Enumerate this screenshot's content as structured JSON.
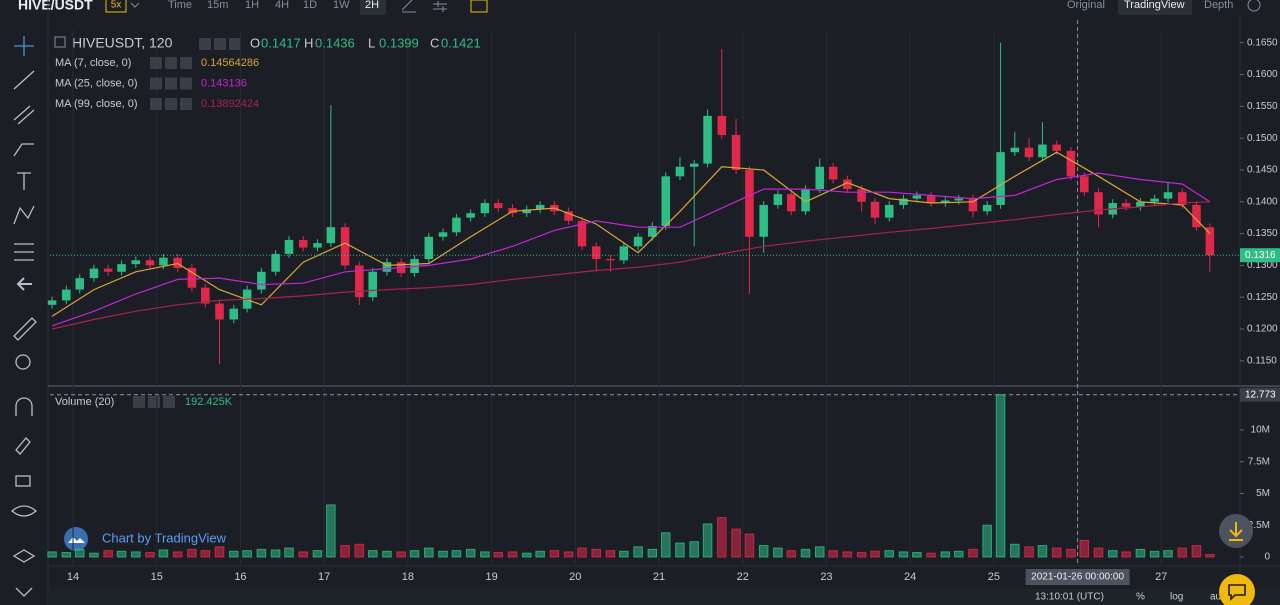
{
  "toolbar": {
    "symbol": "HIVE/USDT",
    "leverage": "5x",
    "intervals": [
      "Time",
      "15m",
      "1H",
      "4H",
      "1D",
      "1W",
      "2H"
    ],
    "views": [
      "Original",
      "TradingView",
      "Depth"
    ]
  },
  "watermark": "Chart by TradingView",
  "footer": {
    "time": "13:10:01 (UTC)",
    "percent": "%",
    "log": "log",
    "auto": "auto"
  },
  "chart_data": [
    {
      "type": "candlestick",
      "title": "HIVEUSDT, 120",
      "ohlc_legend": [
        {
          "key": "O",
          "value": 0.1417
        },
        {
          "key": "H",
          "value": 0.1436
        },
        {
          "key": "L",
          "value": 0.1399
        },
        {
          "key": "C",
          "value": 0.1421
        }
      ],
      "up_color": "#2ebd85",
      "down_color": "#e0294a",
      "x": [
        13.75,
        13.92,
        14.08,
        14.25,
        14.42,
        14.58,
        14.75,
        14.92,
        15.08,
        15.25,
        15.42,
        15.58,
        15.75,
        15.92,
        16.08,
        16.25,
        16.42,
        16.58,
        16.75,
        16.92,
        17.08,
        17.25,
        17.42,
        17.58,
        17.75,
        17.92,
        18.08,
        18.25,
        18.42,
        18.58,
        18.75,
        18.92,
        19.08,
        19.25,
        19.42,
        19.58,
        19.75,
        19.92,
        20.08,
        20.25,
        20.42,
        20.58,
        20.75,
        20.92,
        21.08,
        21.25,
        21.42,
        21.58,
        21.75,
        21.92,
        22.08,
        22.25,
        22.42,
        22.58,
        22.75,
        22.92,
        23.08,
        23.25,
        23.42,
        23.58,
        23.75,
        23.92,
        24.08,
        24.25,
        24.42,
        24.58,
        24.75,
        24.92,
        25.08,
        25.25,
        25.42,
        25.58,
        25.75,
        25.92,
        26.08,
        26.25,
        26.42,
        26.58,
        26.75,
        26.92,
        27.08,
        27.25,
        27.42,
        27.58
      ],
      "open": [
        0.1238,
        0.1245,
        0.1262,
        0.128,
        0.1295,
        0.129,
        0.1302,
        0.1308,
        0.13,
        0.1312,
        0.1296,
        0.1265,
        0.124,
        0.1215,
        0.1232,
        0.1262,
        0.129,
        0.1318,
        0.134,
        0.1328,
        0.1335,
        0.136,
        0.13,
        0.125,
        0.129,
        0.1305,
        0.1288,
        0.131,
        0.1345,
        0.1352,
        0.1375,
        0.1382,
        0.1398,
        0.139,
        0.1382,
        0.1388,
        0.1395,
        0.1385,
        0.137,
        0.133,
        0.131,
        0.1308,
        0.133,
        0.1345,
        0.1362,
        0.144,
        0.1455,
        0.146,
        0.1535,
        0.1505,
        0.145,
        0.1345,
        0.1395,
        0.1412,
        0.1385,
        0.142,
        0.1455,
        0.1435,
        0.142,
        0.14,
        0.1375,
        0.1395,
        0.1405,
        0.141,
        0.1398,
        0.1402,
        0.1405,
        0.1385,
        0.1395,
        0.1478,
        0.1485,
        0.147,
        0.149,
        0.148,
        0.144,
        0.1415,
        0.138,
        0.1398,
        0.1392,
        0.14,
        0.1405,
        0.1415,
        0.1395,
        0.136
      ],
      "high": [
        0.1251,
        0.1268,
        0.1286,
        0.1301,
        0.1301,
        0.1308,
        0.1314,
        0.1314,
        0.1318,
        0.1318,
        0.1302,
        0.1271,
        0.1246,
        0.1238,
        0.1268,
        0.1296,
        0.1324,
        0.1346,
        0.1346,
        0.1341,
        0.1552,
        0.1366,
        0.1306,
        0.1296,
        0.1311,
        0.1311,
        0.1316,
        0.1351,
        0.1358,
        0.1381,
        0.1388,
        0.1404,
        0.1404,
        0.1396,
        0.1394,
        0.1401,
        0.1401,
        0.1391,
        0.1376,
        0.1336,
        0.1316,
        0.1336,
        0.1351,
        0.1368,
        0.1446,
        0.147,
        0.1466,
        0.1545,
        0.164,
        0.153,
        0.1456,
        0.1401,
        0.1418,
        0.1418,
        0.1426,
        0.1468,
        0.1461,
        0.1441,
        0.1426,
        0.1406,
        0.1401,
        0.1411,
        0.1416,
        0.1416,
        0.1408,
        0.1411,
        0.1411,
        0.1401,
        0.165,
        0.151,
        0.15,
        0.1525,
        0.1496,
        0.1486,
        0.1446,
        0.1421,
        0.1404,
        0.1404,
        0.1406,
        0.1411,
        0.143,
        0.1421,
        0.1401,
        0.1366
      ],
      "low": [
        0.1232,
        0.1239,
        0.1256,
        0.1274,
        0.1284,
        0.1284,
        0.1296,
        0.1294,
        0.1294,
        0.129,
        0.1259,
        0.1234,
        0.1145,
        0.1209,
        0.1226,
        0.1256,
        0.1284,
        0.1312,
        0.1322,
        0.1322,
        0.1329,
        0.1294,
        0.1238,
        0.1244,
        0.1284,
        0.1282,
        0.1282,
        0.1304,
        0.1339,
        0.1346,
        0.1369,
        0.1376,
        0.1384,
        0.1376,
        0.1376,
        0.1382,
        0.1379,
        0.1364,
        0.1324,
        0.129,
        0.129,
        0.1302,
        0.1324,
        0.1339,
        0.1356,
        0.1434,
        0.133,
        0.1454,
        0.1499,
        0.1444,
        0.1255,
        0.132,
        0.1389,
        0.1379,
        0.1379,
        0.1414,
        0.1429,
        0.1414,
        0.1385,
        0.1365,
        0.1369,
        0.1389,
        0.1399,
        0.1392,
        0.1392,
        0.1396,
        0.1375,
        0.1379,
        0.1389,
        0.1472,
        0.1464,
        0.1464,
        0.1474,
        0.1434,
        0.1409,
        0.136,
        0.1374,
        0.1386,
        0.1386,
        0.1394,
        0.1399,
        0.1389,
        0.1354,
        0.129
      ],
      "close": [
        0.1245,
        0.1262,
        0.128,
        0.1295,
        0.129,
        0.1302,
        0.1308,
        0.13,
        0.1312,
        0.1296,
        0.1265,
        0.124,
        0.1215,
        0.1232,
        0.1262,
        0.129,
        0.1318,
        0.134,
        0.1328,
        0.1335,
        0.136,
        0.13,
        0.125,
        0.129,
        0.1305,
        0.1288,
        0.131,
        0.1345,
        0.1352,
        0.1375,
        0.1382,
        0.1398,
        0.139,
        0.1382,
        0.1388,
        0.1395,
        0.1385,
        0.137,
        0.133,
        0.131,
        0.1308,
        0.133,
        0.1345,
        0.1362,
        0.144,
        0.1455,
        0.146,
        0.1535,
        0.1505,
        0.145,
        0.1345,
        0.1395,
        0.1412,
        0.1385,
        0.142,
        0.1455,
        0.1435,
        0.142,
        0.14,
        0.1375,
        0.1395,
        0.1405,
        0.141,
        0.1398,
        0.1402,
        0.1405,
        0.1385,
        0.1395,
        0.1478,
        0.1485,
        0.147,
        0.149,
        0.148,
        0.144,
        0.1415,
        0.138,
        0.1398,
        0.1392,
        0.14,
        0.1405,
        0.1415,
        0.1395,
        0.136,
        0.1316
      ],
      "series": [
        {
          "name": "MA (7, close, 0)",
          "color": "#d8a633",
          "legend_value": 0.14564286,
          "x": [
            13.75,
            14.25,
            14.75,
            15.25,
            15.75,
            16.25,
            16.75,
            17.25,
            17.75,
            18.25,
            18.75,
            19.25,
            19.75,
            20.25,
            20.75,
            21.25,
            21.75,
            22.25,
            22.75,
            23.25,
            23.75,
            24.25,
            24.75,
            25.25,
            25.75,
            26.25,
            26.75,
            27.25,
            27.58
          ],
          "values": [
            0.122,
            0.1262,
            0.129,
            0.1303,
            0.1262,
            0.1238,
            0.1305,
            0.1335,
            0.13,
            0.1303,
            0.1345,
            0.1385,
            0.139,
            0.1365,
            0.132,
            0.1385,
            0.1455,
            0.145,
            0.14,
            0.143,
            0.1405,
            0.1398,
            0.14,
            0.144,
            0.1478,
            0.144,
            0.14,
            0.1395,
            0.135
          ]
        },
        {
          "name": "MA (25, close, 0)",
          "color": "#c026d3",
          "legend_value": 0.143136,
          "x": [
            13.75,
            14.25,
            14.75,
            15.25,
            15.75,
            16.25,
            16.75,
            17.25,
            17.75,
            18.25,
            18.75,
            19.25,
            19.75,
            20.25,
            20.75,
            21.25,
            21.75,
            22.25,
            22.75,
            23.25,
            23.75,
            24.25,
            24.75,
            25.25,
            25.75,
            26.25,
            26.75,
            27.25,
            27.58
          ],
          "values": [
            0.1205,
            0.1228,
            0.1255,
            0.1278,
            0.128,
            0.127,
            0.1272,
            0.129,
            0.1295,
            0.13,
            0.131,
            0.133,
            0.1355,
            0.137,
            0.136,
            0.136,
            0.139,
            0.142,
            0.142,
            0.1415,
            0.1415,
            0.141,
            0.1405,
            0.141,
            0.1435,
            0.1445,
            0.1435,
            0.1428,
            0.14
          ]
        },
        {
          "name": "MA (99, close, 0)",
          "color": "#a8234c",
          "legend_value": 0.13892424,
          "x": [
            13.75,
            14.25,
            14.75,
            15.25,
            15.75,
            16.25,
            16.75,
            17.25,
            17.75,
            18.25,
            18.75,
            19.25,
            19.75,
            20.25,
            20.75,
            21.25,
            21.75,
            22.25,
            22.75,
            23.25,
            23.75,
            24.25,
            24.75,
            25.25,
            25.75,
            26.25,
            26.75,
            27.25,
            27.58
          ],
          "values": [
            0.12,
            0.1215,
            0.1228,
            0.1238,
            0.1245,
            0.1248,
            0.1252,
            0.1258,
            0.1262,
            0.1265,
            0.127,
            0.1278,
            0.1285,
            0.1292,
            0.1297,
            0.1305,
            0.1318,
            0.133,
            0.1338,
            0.1345,
            0.1352,
            0.1358,
            0.1365,
            0.1372,
            0.138,
            0.1387,
            0.1392,
            0.1398,
            0.14
          ]
        }
      ],
      "last_price": 0.1316,
      "crosshair": {
        "x": 26,
        "label": "2021-01-26 00:00:00"
      },
      "xlim": [
        13.725,
        27.94
      ],
      "xticks": [
        14,
        15,
        16,
        17,
        18,
        19,
        20,
        21,
        22,
        23,
        24,
        25,
        26,
        27
      ],
      "grid": true,
      "ylim": [
        0.1112,
        0.167
      ],
      "yticks": [
        {
          "value": 0.115,
          "label": "0.1150"
        },
        {
          "value": 0.12,
          "label": "0.1200"
        },
        {
          "value": 0.125,
          "label": "0.1250"
        },
        {
          "value": 0.13,
          "label": "0.1300"
        },
        {
          "value": 0.135,
          "label": "0.1350"
        },
        {
          "value": 0.14,
          "label": "0.1400"
        },
        {
          "value": 0.145,
          "label": "0.1450"
        },
        {
          "value": 0.15,
          "label": "0.1500"
        },
        {
          "value": 0.155,
          "label": "0.1550"
        },
        {
          "value": 0.16,
          "label": "0.1600"
        },
        {
          "value": 0.165,
          "label": "0.1650"
        }
      ]
    },
    {
      "type": "bar",
      "title": "Volume (20)",
      "legend_value_label": "192.425K",
      "values": [
        400000,
        350000,
        600000,
        300000,
        500000,
        450000,
        400000,
        350000,
        550000,
        400000,
        600000,
        500000,
        800000,
        450000,
        500000,
        600000,
        550000,
        700000,
        400000,
        500000,
        4100000,
        900000,
        1000000,
        500000,
        450000,
        400000,
        500000,
        700000,
        450000,
        500000,
        600000,
        400000,
        350000,
        400000,
        300000,
        450000,
        500000,
        400000,
        700000,
        600000,
        500000,
        450000,
        800000,
        600000,
        1900000,
        1100000,
        1200000,
        2600000,
        3100000,
        2200000,
        1800000,
        900000,
        700000,
        500000,
        600000,
        800000,
        500000,
        400000,
        350000,
        450000,
        500000,
        400000,
        350000,
        300000,
        400000,
        450000,
        600000,
        2500000,
        12773000,
        1000000,
        800000,
        900000,
        700000,
        600000,
        1300000,
        700000,
        500000,
        400000,
        600000,
        450000,
        500000,
        700000,
        900000,
        192425
      ],
      "marker": {
        "value": 12773000,
        "label": "12.773"
      },
      "ylim": [
        -630000,
        13300000
      ],
      "yticks": [
        0,
        {
          "value": 2500000,
          "label": "2.5M"
        },
        {
          "value": 5000000,
          "label": "5M"
        },
        {
          "value": 7500000,
          "label": "7.5M"
        },
        {
          "value": 10000000,
          "label": "10M"
        }
      ]
    }
  ]
}
